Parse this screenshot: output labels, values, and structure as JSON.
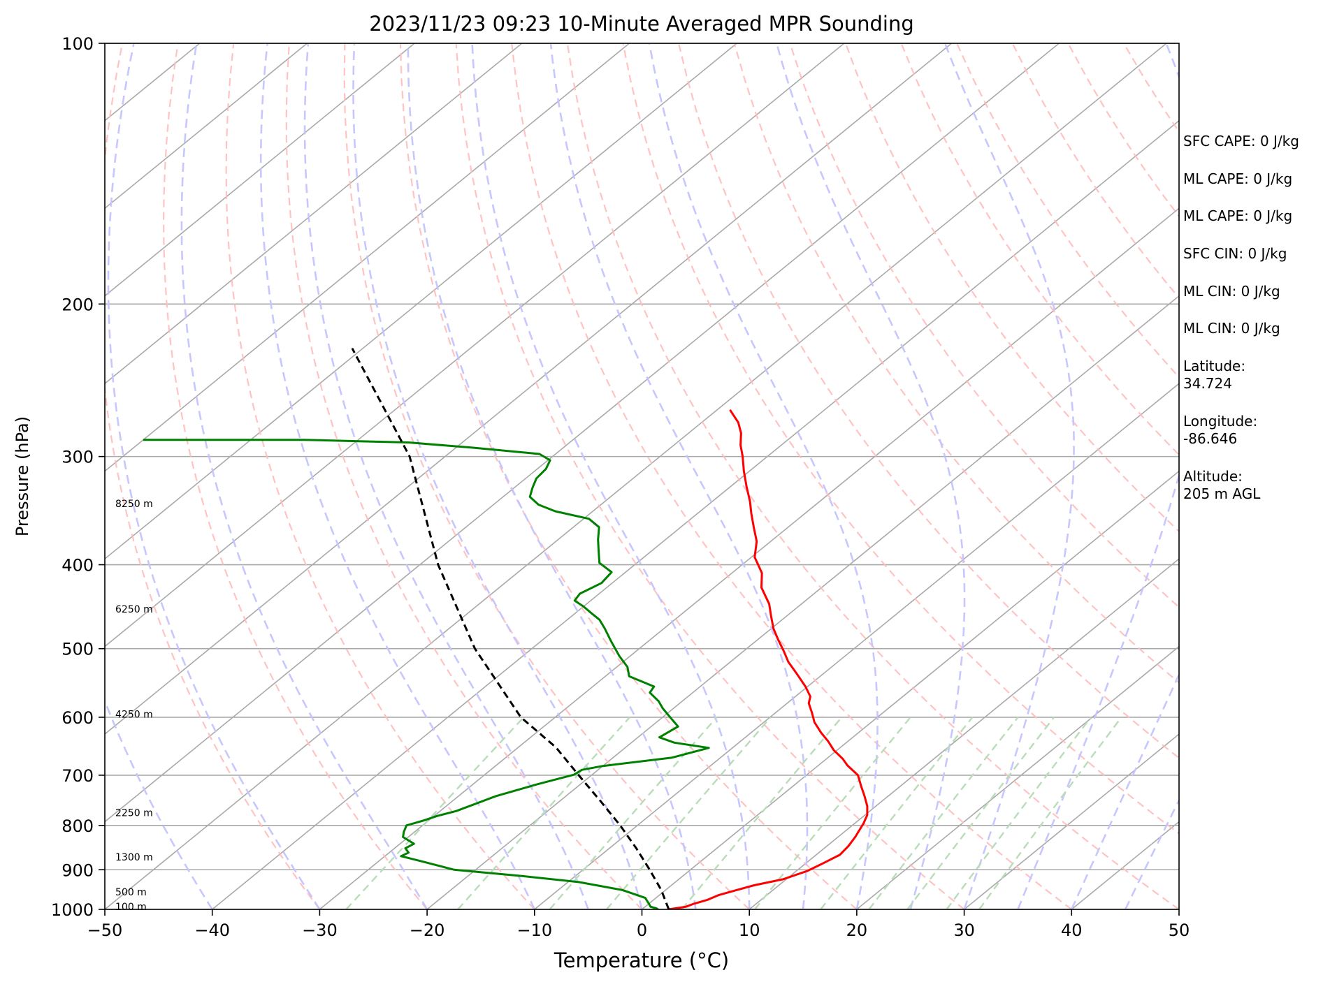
{
  "chart_data": {
    "type": "line",
    "title": "2023/11/23 09:23 10-Minute Averaged MPR Sounding",
    "xlabel": "Temperature (°C)",
    "ylabel": "Pressure (hPa)",
    "xlim": [
      -50,
      50
    ],
    "ylim": [
      1000,
      100
    ],
    "y_scale": "log",
    "skew": "skew-T log-P",
    "grid": true,
    "x_ticks": [
      -50,
      -40,
      -30,
      -20,
      -10,
      0,
      10,
      20,
      30,
      40,
      50
    ],
    "y_ticks": [
      100,
      200,
      300,
      400,
      500,
      600,
      700,
      800,
      900,
      1000
    ],
    "x_tick_labels": [
      "−50",
      "−40",
      "−30",
      "−20",
      "−10",
      "0",
      "10",
      "20",
      "30",
      "40",
      "50"
    ],
    "y_tick_labels": [
      "100",
      "200",
      "300",
      "400",
      "500",
      "600",
      "700",
      "800",
      "900",
      "1000"
    ],
    "height_labels": [
      {
        "p": 340,
        "label": "8250 m"
      },
      {
        "p": 450,
        "label": "6250 m"
      },
      {
        "p": 595,
        "label": "4250 m"
      },
      {
        "p": 773,
        "label": "2250 m"
      },
      {
        "p": 870,
        "label": "1300 m"
      },
      {
        "p": 955,
        "label": "500 m"
      },
      {
        "p": 993,
        "label": "100 m"
      }
    ],
    "series": [
      {
        "role": "temperature",
        "color": "#ff0000",
        "points": [
          [
            2.5,
            1000
          ],
          [
            3.8,
            993
          ],
          [
            4.2,
            985
          ],
          [
            5,
            975
          ],
          [
            5.5,
            963
          ],
          [
            6.6,
            950
          ],
          [
            7.7,
            938
          ],
          [
            9.7,
            923
          ],
          [
            11,
            903
          ],
          [
            11.6,
            885
          ],
          [
            12.2,
            865
          ],
          [
            12,
            845
          ],
          [
            11.6,
            825
          ],
          [
            11.2,
            810
          ],
          [
            10.8,
            795
          ],
          [
            10.2,
            778
          ],
          [
            9.2,
            760
          ],
          [
            7.8,
            740
          ],
          [
            6.3,
            720
          ],
          [
            4.8,
            700
          ],
          [
            2.7,
            682
          ],
          [
            1.5,
            670
          ],
          [
            -0.3,
            655
          ],
          [
            -1.8,
            640
          ],
          [
            -3.5,
            625
          ],
          [
            -5.3,
            608
          ],
          [
            -6.6,
            593
          ],
          [
            -8,
            578
          ],
          [
            -8.6,
            568
          ],
          [
            -10.2,
            553
          ],
          [
            -12.4,
            535
          ],
          [
            -14.6,
            518
          ],
          [
            -16.3,
            503
          ],
          [
            -18,
            489
          ],
          [
            -19.8,
            474
          ],
          [
            -21.5,
            458
          ],
          [
            -23,
            444
          ],
          [
            -25.6,
            425
          ],
          [
            -27.2,
            409
          ],
          [
            -29.7,
            392
          ],
          [
            -31.3,
            376
          ],
          [
            -33.2,
            362
          ],
          [
            -35,
            349
          ],
          [
            -36.5,
            338
          ],
          [
            -38.5,
            325
          ],
          [
            -40.5,
            312
          ],
          [
            -42.3,
            300
          ],
          [
            -43.8,
            291
          ],
          [
            -45.1,
            282
          ],
          [
            -46.6,
            274
          ],
          [
            -48.8,
            265
          ]
        ]
      },
      {
        "role": "dewpoint",
        "color": "#008000",
        "points": [
          [
            1.5,
            1000
          ],
          [
            1.2,
            997
          ],
          [
            0.5,
            993
          ],
          [
            0,
            985
          ],
          [
            -1,
            970
          ],
          [
            -4,
            950
          ],
          [
            -9,
            930
          ],
          [
            -15,
            915
          ],
          [
            -22,
            900
          ],
          [
            -26,
            880
          ],
          [
            -28.5,
            868
          ],
          [
            -28.2,
            860
          ],
          [
            -29,
            850
          ],
          [
            -28.7,
            840
          ],
          [
            -30.5,
            825
          ],
          [
            -31,
            814
          ],
          [
            -31.5,
            800
          ],
          [
            -30.5,
            790
          ],
          [
            -29.7,
            780
          ],
          [
            -28.5,
            770
          ],
          [
            -26.5,
            740
          ],
          [
            -24,
            717
          ],
          [
            -21.7,
            699
          ],
          [
            -21.5,
            690
          ],
          [
            -20,
            683
          ],
          [
            -14.5,
            668
          ],
          [
            -12.2,
            651
          ],
          [
            -16,
            642
          ],
          [
            -18,
            633
          ],
          [
            -17.5,
            615
          ],
          [
            -19.3,
            600
          ],
          [
            -21,
            586
          ],
          [
            -22.2,
            575
          ],
          [
            -24,
            562
          ],
          [
            -24.3,
            553
          ],
          [
            -27.8,
            538
          ],
          [
            -29,
            525
          ],
          [
            -31,
            510
          ],
          [
            -33.5,
            490
          ],
          [
            -35.5,
            474
          ],
          [
            -37,
            463
          ],
          [
            -38.5,
            455
          ],
          [
            -40,
            447
          ],
          [
            -41.5,
            440
          ],
          [
            -41.8,
            432
          ],
          [
            -41,
            420
          ],
          [
            -41.3,
            408
          ],
          [
            -43.5,
            398
          ],
          [
            -45,
            385
          ],
          [
            -46.3,
            374
          ],
          [
            -47.6,
            362
          ],
          [
            -49.5,
            354
          ],
          [
            -53.5,
            347
          ],
          [
            -55.8,
            341
          ],
          [
            -57.5,
            334
          ],
          [
            -58.3,
            326
          ],
          [
            -59,
            318
          ],
          [
            -59.2,
            310
          ],
          [
            -59.8,
            303
          ],
          [
            -61.5,
            298
          ],
          [
            -68.5,
            293
          ],
          [
            -75,
            289
          ],
          [
            -85,
            287
          ],
          [
            -100,
            287
          ]
        ]
      },
      {
        "role": "parcel",
        "color": "#000000",
        "style": "dashed",
        "points": [
          [
            2.5,
            1000
          ],
          [
            -0.4,
            950
          ],
          [
            -3.8,
            900
          ],
          [
            -7.5,
            850
          ],
          [
            -11.6,
            800
          ],
          [
            -16.2,
            750
          ],
          [
            -21.2,
            700
          ],
          [
            -26.5,
            650
          ],
          [
            -33.2,
            600
          ],
          [
            -45.3,
            500
          ],
          [
            -58.3,
            400
          ],
          [
            -73.3,
            300
          ],
          [
            -91,
            225
          ]
        ]
      }
    ],
    "background_lines": {
      "isotherm_color": "#a9a9a9",
      "dry_adiabat_color": "#ffbcbc",
      "moist_adiabat_color": "#c4c4ff",
      "mixing_ratio_color": "#b9dcb9"
    }
  },
  "stats": [
    "SFC CAPE: 0 J/kg",
    "ML CAPE: 0 J/kg",
    "ML CAPE: 0 J/kg",
    "SFC CIN: 0 J/kg",
    "ML CIN: 0 J/kg",
    "ML CIN: 0 J/kg"
  ],
  "location": {
    "latitude_label": "Latitude:",
    "latitude_value": "34.724",
    "longitude_label": "Longitude:",
    "longitude_value": "-86.646",
    "altitude_label": "Altitude:",
    "altitude_value": "205 m AGL"
  }
}
